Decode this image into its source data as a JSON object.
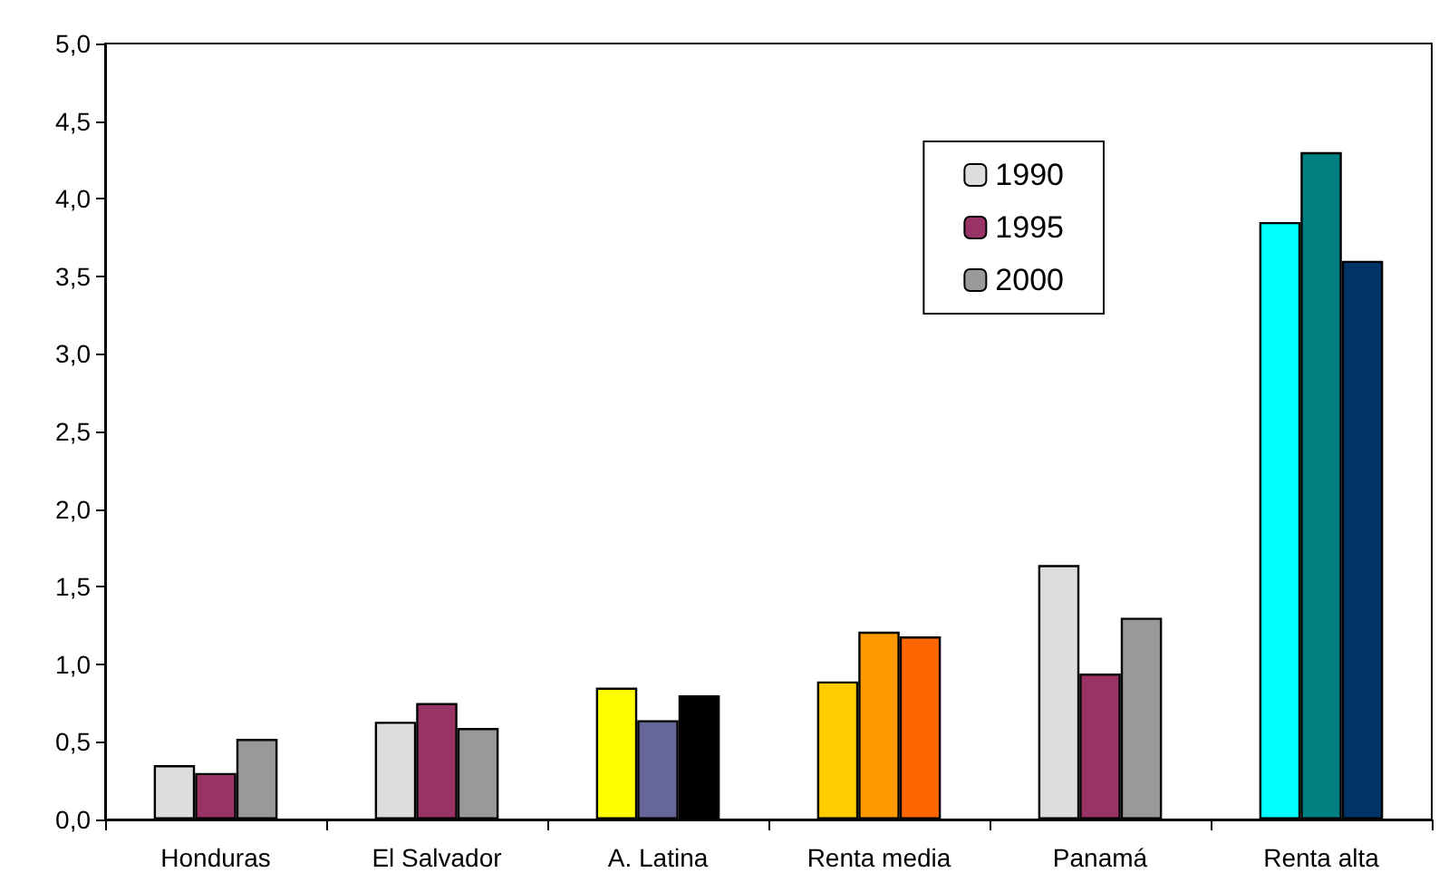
{
  "chart_data": {
    "type": "bar",
    "categories": [
      "Honduras",
      "El Salvador",
      "A. Latina",
      "Renta media",
      "Panamá",
      "Renta alta"
    ],
    "series": [
      {
        "name": "1990",
        "color": "#dddddd",
        "colors": [
          "#dddddd",
          "#dddddd",
          "#ffff00",
          "#ffcc00",
          "#dddddd",
          "#00ffff"
        ],
        "values": [
          0.35,
          0.63,
          0.85,
          0.89,
          1.64,
          3.85
        ]
      },
      {
        "name": "1995",
        "color": "#993366",
        "colors": [
          "#993366",
          "#993366",
          "#666699",
          "#ff9900",
          "#993366",
          "#008080"
        ],
        "values": [
          0.3,
          0.75,
          0.64,
          1.21,
          0.94,
          4.3
        ]
      },
      {
        "name": "2000",
        "color": "#999999",
        "colors": [
          "#999999",
          "#999999",
          "#000000",
          "#ff6600",
          "#999999",
          "#003366"
        ],
        "values": [
          0.52,
          0.59,
          0.8,
          1.18,
          1.3,
          3.6
        ]
      }
    ],
    "ylim": [
      0,
      5
    ],
    "yticks": [
      {
        "value": 0,
        "label": "0,0"
      },
      {
        "value": 0.5,
        "label": "0,5"
      },
      {
        "value": 1,
        "label": "1,0"
      },
      {
        "value": 1.5,
        "label": "1,5"
      },
      {
        "value": 2,
        "label": "2,0"
      },
      {
        "value": 2.5,
        "label": "2,5"
      },
      {
        "value": 3,
        "label": "3,0"
      },
      {
        "value": 3.5,
        "label": "3,5"
      },
      {
        "value": 4,
        "label": "4,0"
      },
      {
        "value": 4.5,
        "label": "4,5"
      },
      {
        "value": 5,
        "label": "5,0"
      }
    ],
    "grid": false,
    "legend": "top right"
  }
}
